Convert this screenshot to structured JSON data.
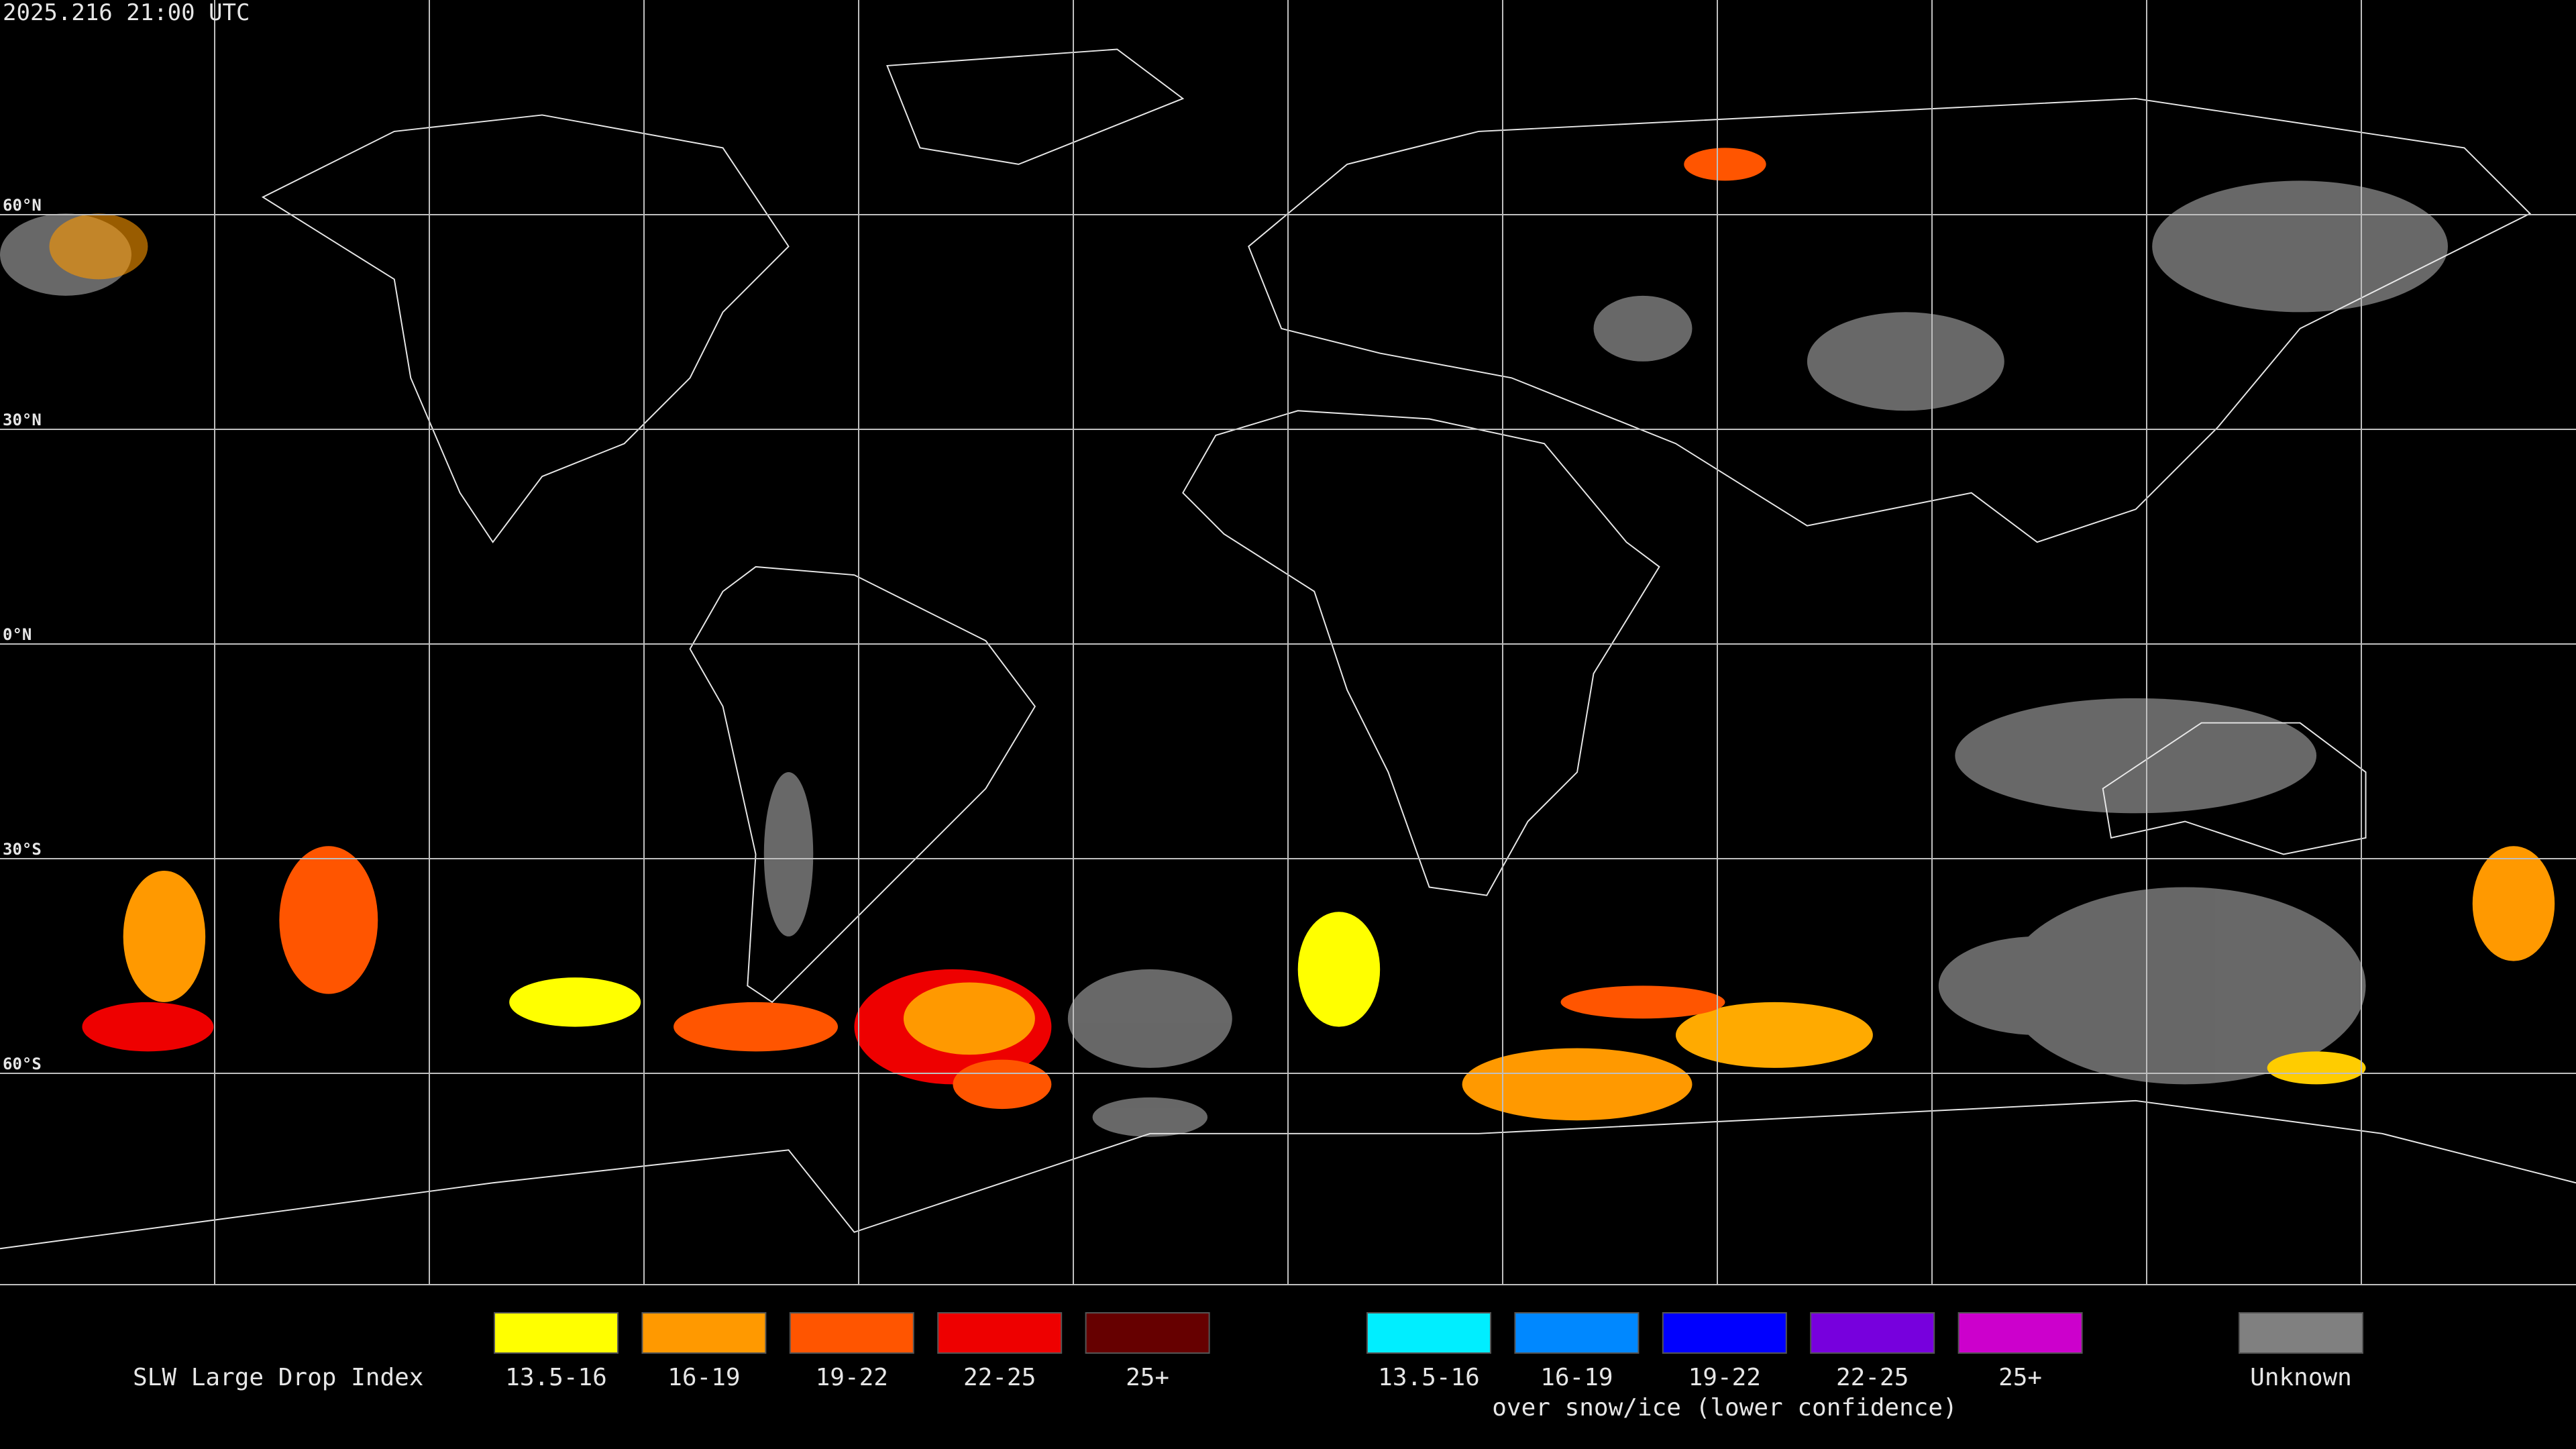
{
  "timestamp": "2025.216 21:00 UTC",
  "lat_labels": [
    "60°N",
    "30°N",
    "0°N",
    "30°S",
    "60°S"
  ],
  "legend": {
    "title": "SLW Large Drop Index",
    "items": [
      {
        "label": "13.5-16",
        "color": "#ffff00"
      },
      {
        "label": "16-19",
        "color": "#ff9900"
      },
      {
        "label": "19-22",
        "color": "#ff5500"
      },
      {
        "label": "22-25",
        "color": "#ee0000"
      },
      {
        "label": "25+",
        "color": "#660000"
      }
    ],
    "snow_items": [
      {
        "label": "13.5-16",
        "color": "#00eeff"
      },
      {
        "label": "16-19",
        "color": "#0088ff"
      },
      {
        "label": "19-22",
        "color": "#0000ff"
      },
      {
        "label": "22-25",
        "color": "#7700dd"
      },
      {
        "label": "25+",
        "color": "#cc00cc"
      }
    ],
    "snow_note": "over snow/ice (lower confidence)",
    "unknown": {
      "label": "Unknown",
      "color": "#808080"
    }
  }
}
